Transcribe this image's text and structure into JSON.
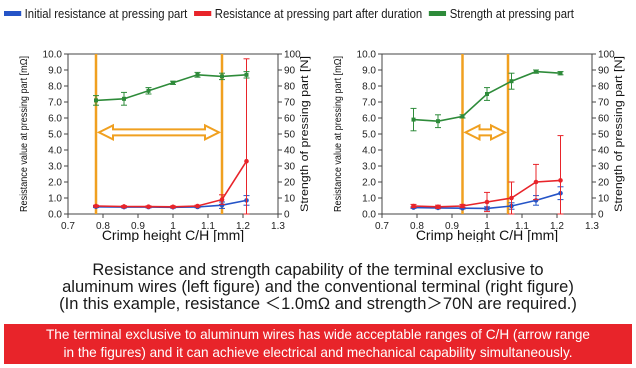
{
  "legend": [
    {
      "label": "Initial resistance at pressing part",
      "color": "#2554c7"
    },
    {
      "label": "Resistance at pressing part after duration",
      "color": "#e8242a"
    },
    {
      "label": "Strength at pressing part",
      "color": "#2e8b3a"
    }
  ],
  "captions": {
    "line1": "Resistance and strength capability of the terminal exclusive to",
    "line2": "aluminum wires (left figure) and the conventional terminal (right figure)",
    "line3": "(In this example, resistance ＜1.0mΩ and strength＞70N are required.)"
  },
  "banner": {
    "line1": "The terminal exclusive to aluminum wires has wide acceptable ranges of C/H (arrow range",
    "line2": "in the figures) and it can achieve electrical and mechanical capability simultaneously."
  },
  "colors": {
    "blue": "#2554c7",
    "red": "#e8242a",
    "green": "#2e8b3a",
    "orange": "#f0a020"
  },
  "chart_data": [
    {
      "type": "line",
      "xlabel": "Crimp height C/H [mm]",
      "ylabel": "Resistance value at pressing part [mΩ]",
      "y2label": "Strength of pressing part [N]",
      "xlim": [
        0.7,
        1.3
      ],
      "xticks": [
        "0.7",
        "0.8",
        "0.9",
        "1",
        "1.1",
        "1.2",
        "1.3"
      ],
      "ylim": [
        0,
        10
      ],
      "yticks": [
        "0.0",
        "1.0",
        "2.0",
        "3.0",
        "4.0",
        "5.0",
        "6.0",
        "7.0",
        "8.0",
        "9.0",
        "10.0"
      ],
      "y2lim": [
        0,
        100
      ],
      "y2ticks": [
        "0",
        "10",
        "20",
        "30",
        "40",
        "50",
        "60",
        "70",
        "80",
        "90",
        "100"
      ],
      "acceptable_range": [
        0.78,
        1.14
      ],
      "series": [
        {
          "axis": "left",
          "color": "#2554c7",
          "x": [
            0.78,
            0.86,
            0.93,
            1.0,
            1.07,
            1.14,
            1.21
          ],
          "y": [
            0.45,
            0.43,
            0.43,
            0.42,
            0.44,
            0.55,
            0.85
          ],
          "err": [
            0.05,
            0.05,
            0.05,
            0.05,
            0.05,
            0.2,
            0.3
          ]
        },
        {
          "axis": "left",
          "color": "#e8242a",
          "x": [
            0.78,
            0.86,
            0.93,
            1.0,
            1.07,
            1.14,
            1.21
          ],
          "y": [
            0.5,
            0.47,
            0.46,
            0.45,
            0.5,
            0.9,
            3.3
          ],
          "err": [
            0.05,
            0.05,
            0.05,
            0.05,
            0.05,
            0.3,
            6.4
          ]
        },
        {
          "axis": "right",
          "color": "#2e8b3a",
          "x": [
            0.78,
            0.86,
            0.93,
            1.0,
            1.07,
            1.14,
            1.21
          ],
          "y": [
            71,
            72,
            77,
            82,
            87,
            86,
            87
          ],
          "err": [
            3,
            4,
            2,
            1,
            1.5,
            2,
            2
          ]
        }
      ]
    },
    {
      "type": "line",
      "xlabel": "Crimp height C/H [mm]",
      "ylabel": "Resistance value at pressing part [mΩ]",
      "y2label": "Strength of pressing part [N]",
      "xlim": [
        0.7,
        1.3
      ],
      "xticks": [
        "0.7",
        "0.8",
        "0.9",
        "1",
        "1.1",
        "1.2",
        "1.3"
      ],
      "ylim": [
        0,
        10
      ],
      "yticks": [
        "0.0",
        "1.0",
        "2.0",
        "3.0",
        "4.0",
        "5.0",
        "6.0",
        "7.0",
        "8.0",
        "9.0",
        "10.0"
      ],
      "y2lim": [
        0,
        100
      ],
      "y2ticks": [
        "0",
        "10",
        "20",
        "30",
        "40",
        "50",
        "60",
        "70",
        "80",
        "90",
        "100"
      ],
      "acceptable_range": [
        0.93,
        1.06
      ],
      "series": [
        {
          "axis": "left",
          "color": "#2554c7",
          "x": [
            0.79,
            0.86,
            0.93,
            1.0,
            1.07,
            1.14,
            1.21
          ],
          "y": [
            0.4,
            0.38,
            0.36,
            0.35,
            0.5,
            0.85,
            1.3
          ],
          "err": [
            0.05,
            0.05,
            0.05,
            0.1,
            0.2,
            0.3,
            0.4
          ]
        },
        {
          "axis": "left",
          "color": "#e8242a",
          "x": [
            0.79,
            0.86,
            0.93,
            1.0,
            1.07,
            1.14,
            1.21
          ],
          "y": [
            0.5,
            0.45,
            0.5,
            0.75,
            1.0,
            2.0,
            2.1
          ],
          "err": [
            0.1,
            0.1,
            0.1,
            0.6,
            1.0,
            1.1,
            2.8
          ]
        },
        {
          "axis": "right",
          "color": "#2e8b3a",
          "x": [
            0.79,
            0.86,
            0.93,
            1.0,
            1.07,
            1.14,
            1.21
          ],
          "y": [
            59,
            58,
            61,
            75,
            83,
            89,
            88
          ],
          "err": [
            7,
            4,
            1,
            4,
            5,
            1,
            1
          ]
        }
      ]
    }
  ]
}
